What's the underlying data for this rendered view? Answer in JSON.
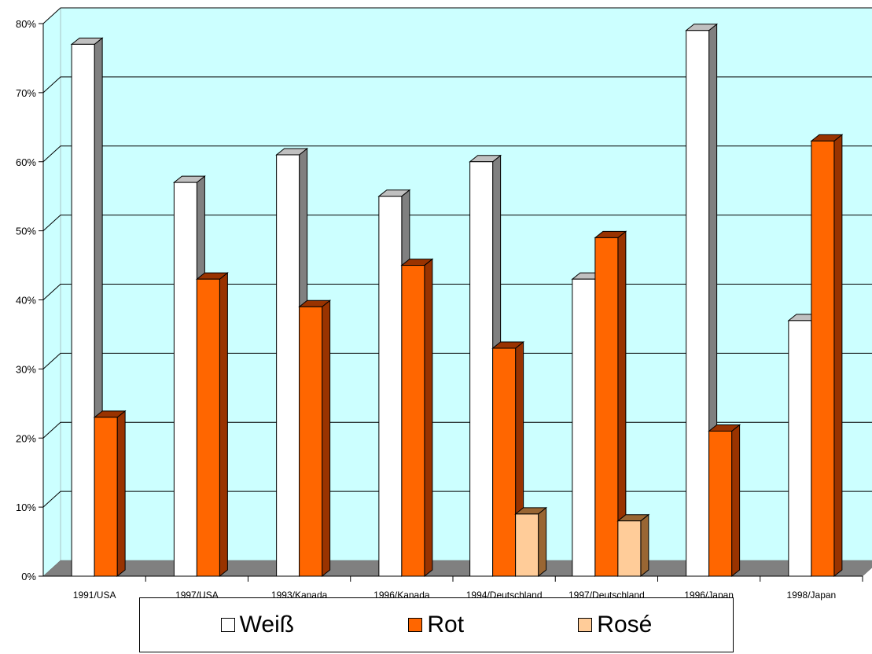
{
  "chart_data": {
    "type": "bar",
    "categories": [
      "1991/USA",
      "1997/USA",
      "1993/Kanada",
      "1996/Kanada",
      "1994/Deutschland",
      "1997/Deutschland",
      "1996/Japan",
      "1998/Japan"
    ],
    "series": [
      {
        "name": "Weiß",
        "color": "#ffffff",
        "side_color": "#808080",
        "values": [
          77,
          57,
          61,
          55,
          60,
          43,
          79,
          37
        ]
      },
      {
        "name": "Rot",
        "color": "#ff6600",
        "side_color": "#993300",
        "values": [
          23,
          43,
          39,
          45,
          33,
          49,
          21,
          63
        ]
      },
      {
        "name": "Rosé",
        "color": "#ffcc99",
        "side_color": "#996633",
        "values": [
          0,
          0,
          0,
          0,
          9,
          8,
          0,
          0
        ]
      }
    ],
    "y_ticks": [
      "0%",
      "10%",
      "20%",
      "30%",
      "40%",
      "50%",
      "60%",
      "70%",
      "80%"
    ],
    "ylim": [
      0,
      80
    ],
    "grid": true,
    "legend_position": "bottom",
    "wall_color": "#ccffff",
    "floor_color": "#808080"
  }
}
